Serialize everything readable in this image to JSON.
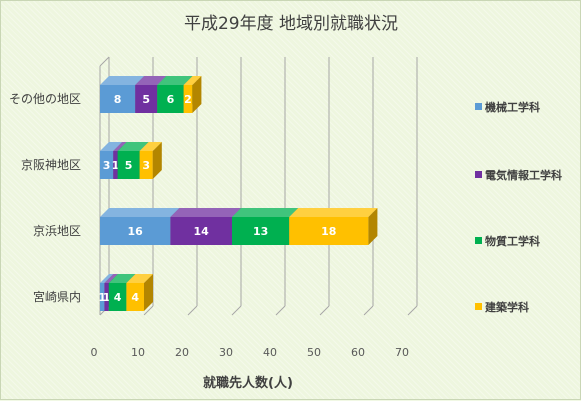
{
  "chart_data": {
    "type": "bar",
    "orientation": "horizontal",
    "stacked": true,
    "style": "3d",
    "title": "平成29年度 地域別就職状況",
    "xlabel": "就職先人数(人)",
    "ylabel": "",
    "xlim": [
      0,
      70
    ],
    "xticks": [
      0,
      10,
      20,
      30,
      40,
      50,
      60,
      70
    ],
    "grid": true,
    "legend_position": "right",
    "categories": [
      "その他の地区",
      "京阪神地区",
      "京浜地区",
      "宮崎県内"
    ],
    "series": [
      {
        "name": "機械工学科",
        "color": "#5b9bd5",
        "values": [
          8,
          3,
          16,
          1
        ]
      },
      {
        "name": "電気情報工学科",
        "color": "#7030a0",
        "values": [
          5,
          1,
          14,
          1
        ]
      },
      {
        "name": "物質工学科",
        "color": "#00b050",
        "values": [
          6,
          5,
          13,
          4
        ]
      },
      {
        "name": "建築学科",
        "color": "#ffc000",
        "values": [
          2,
          3,
          18,
          4
        ]
      }
    ]
  }
}
